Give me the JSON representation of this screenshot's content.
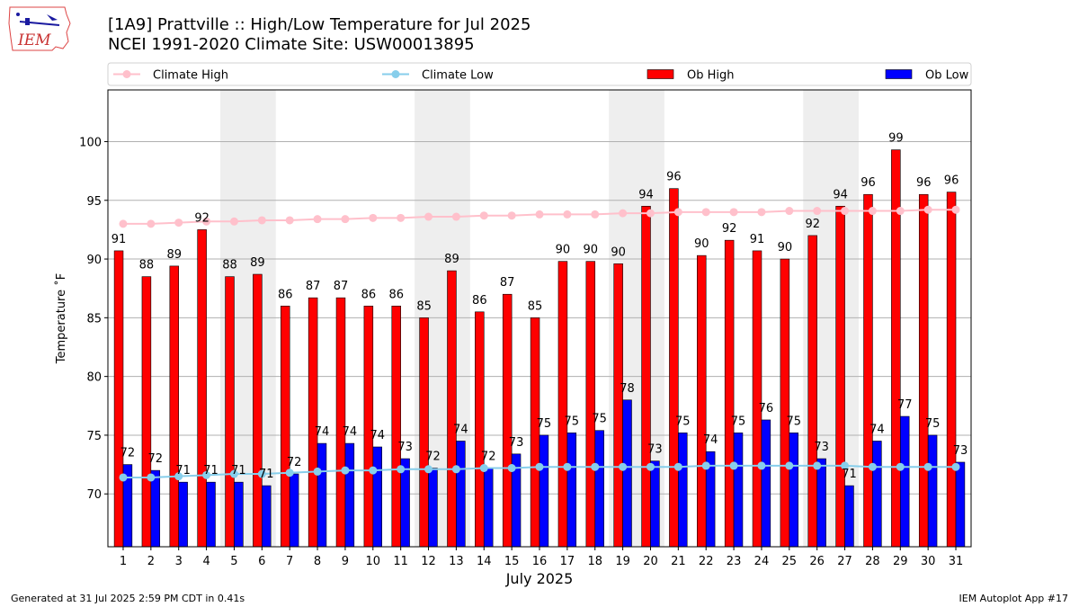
{
  "header": {
    "title_line1": "[1A9] Prattville :: High/Low Temperature for Jul 2025",
    "title_line2": "NCEI 1991-2020 Climate Site: USW00013895",
    "logo_text": "IEM"
  },
  "footer": {
    "generated": "Generated at 31 Jul 2025 2:59 PM CDT in 0.41s",
    "app": "IEM Autoplot App #17"
  },
  "colors": {
    "ob_high": "#ff0000",
    "ob_low": "#0000ff",
    "climate_high": "#ffc0cb",
    "climate_low": "#87ceeb",
    "weekend_shade": "#eeeeee",
    "grid": "#b0b0b0"
  },
  "chart_data": {
    "type": "bar",
    "xlabel": "July 2025",
    "ylabel": "Temperature ˚F",
    "ylim": [
      65.5,
      104.4
    ],
    "yticks": [
      70,
      75,
      80,
      85,
      90,
      95,
      100
    ],
    "grid": "horizontal",
    "legend_position": "top",
    "categories": [
      "1",
      "2",
      "3",
      "4",
      "5",
      "6",
      "7",
      "8",
      "9",
      "10",
      "11",
      "12",
      "13",
      "14",
      "15",
      "16",
      "17",
      "18",
      "19",
      "20",
      "21",
      "22",
      "23",
      "24",
      "25",
      "26",
      "27",
      "28",
      "29",
      "30",
      "31"
    ],
    "shaded_days": [
      [
        5,
        6
      ],
      [
        12,
        13
      ],
      [
        19,
        20
      ],
      [
        26,
        27
      ]
    ],
    "series": [
      {
        "name": "Climate High",
        "kind": "line",
        "values": [
          93.0,
          93.0,
          93.1,
          93.2,
          93.2,
          93.3,
          93.3,
          93.4,
          93.4,
          93.5,
          93.5,
          93.6,
          93.6,
          93.7,
          93.7,
          93.8,
          93.8,
          93.8,
          93.9,
          93.9,
          94.0,
          94.0,
          94.0,
          94.0,
          94.1,
          94.1,
          94.1,
          94.1,
          94.1,
          94.2,
          94.2
        ]
      },
      {
        "name": "Climate Low",
        "kind": "line",
        "values": [
          71.4,
          71.4,
          71.5,
          71.6,
          71.7,
          71.7,
          71.8,
          71.9,
          72.0,
          72.0,
          72.1,
          72.1,
          72.1,
          72.2,
          72.2,
          72.3,
          72.3,
          72.3,
          72.3,
          72.3,
          72.3,
          72.4,
          72.4,
          72.4,
          72.4,
          72.4,
          72.4,
          72.3,
          72.3,
          72.3,
          72.3
        ]
      },
      {
        "name": "Ob High",
        "kind": "bar",
        "values": [
          90.7,
          88.5,
          89.4,
          92.5,
          88.5,
          88.7,
          86.0,
          86.7,
          86.7,
          86.0,
          86.0,
          85.0,
          89.0,
          85.5,
          87.0,
          85.0,
          89.8,
          89.8,
          89.6,
          94.5,
          96.0,
          90.3,
          91.6,
          90.7,
          90.0,
          92.0,
          94.5,
          95.5,
          99.3,
          95.5,
          95.7
        ],
        "labels": [
          "91",
          "88",
          "89",
          "92",
          "88",
          "89",
          "86",
          "87",
          "87",
          "86",
          "86",
          "85",
          "89",
          "86",
          "87",
          "85",
          "90",
          "90",
          "90",
          "94",
          "96",
          "90",
          "92",
          "91",
          "90",
          "92",
          "94",
          "96",
          "99",
          "96",
          "96"
        ]
      },
      {
        "name": "Ob Low",
        "kind": "bar",
        "values": [
          72.5,
          72.0,
          71.0,
          71.0,
          71.0,
          70.7,
          71.7,
          74.3,
          74.3,
          74.0,
          73.0,
          72.2,
          74.5,
          72.2,
          73.4,
          75.0,
          75.2,
          75.4,
          78.0,
          72.8,
          75.2,
          73.6,
          75.2,
          76.3,
          75.2,
          73.0,
          70.7,
          74.5,
          76.6,
          75.0,
          72.7
        ],
        "labels": [
          "72",
          "72",
          "71",
          "71",
          "71",
          "71",
          "72",
          "74",
          "74",
          "74",
          "73",
          "72",
          "74",
          "72",
          "73",
          "75",
          "75",
          "75",
          "78",
          "73",
          "75",
          "74",
          "75",
          "76",
          "75",
          "73",
          "71",
          "74",
          "77",
          "75",
          "73"
        ]
      }
    ]
  }
}
